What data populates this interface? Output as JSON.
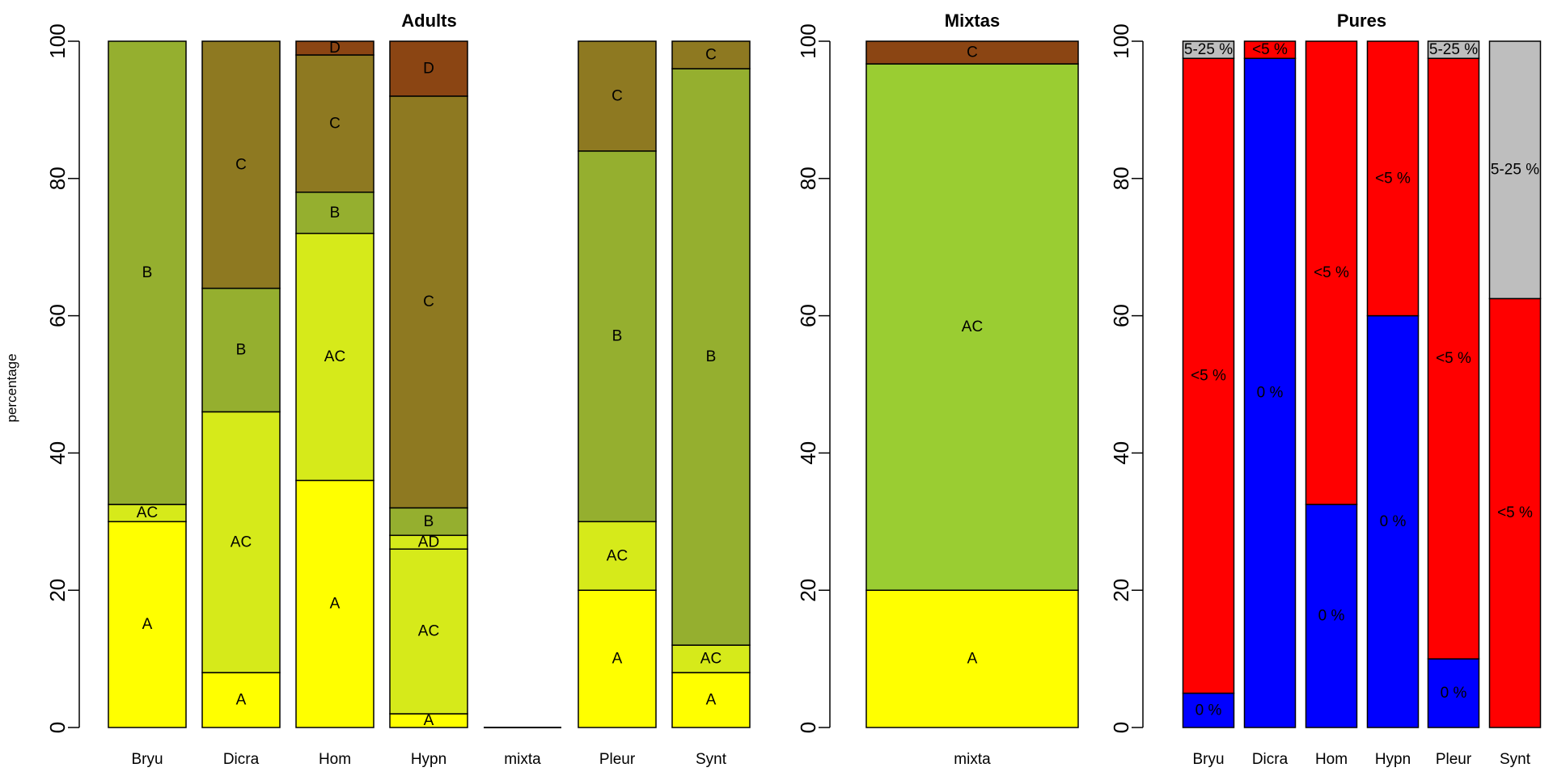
{
  "figure": {
    "ylabel": "percentage",
    "yticks": [
      0,
      20,
      40,
      60,
      80,
      100
    ]
  },
  "chart_data": [
    {
      "type": "bar",
      "stacked": true,
      "title": "Adults",
      "ylim": [
        0,
        100
      ],
      "categories": [
        "Bryu",
        "Dicra",
        "Hom",
        "Hypn",
        "mixta",
        "Pleur",
        "Synt"
      ],
      "bars": [
        {
          "category": "Bryu",
          "segments": [
            {
              "label": "A",
              "value": 30,
              "color": "#FFFF00"
            },
            {
              "label": "AC",
              "value": 2.5,
              "color": "#D6EA1A"
            },
            {
              "label": "B",
              "value": 67.5,
              "color": "#95AF2F"
            }
          ]
        },
        {
          "category": "Dicra",
          "segments": [
            {
              "label": "A",
              "value": 8,
              "color": "#FFFF00"
            },
            {
              "label": "AC",
              "value": 38,
              "color": "#D6EA1A"
            },
            {
              "label": "B",
              "value": 18,
              "color": "#95AF2F"
            },
            {
              "label": "C",
              "value": 36,
              "color": "#8E7921"
            }
          ]
        },
        {
          "category": "Hom",
          "segments": [
            {
              "label": "A",
              "value": 36,
              "color": "#FFFF00"
            },
            {
              "label": "AC",
              "value": 36,
              "color": "#D6EA1A"
            },
            {
              "label": "B",
              "value": 6,
              "color": "#95AF2F"
            },
            {
              "label": "C",
              "value": 20,
              "color": "#8E7921"
            },
            {
              "label": "D",
              "value": 2,
              "color": "#8B4513"
            }
          ]
        },
        {
          "category": "Hypn",
          "segments": [
            {
              "label": "A",
              "value": 2,
              "color": "#FFFF00"
            },
            {
              "label": "AC",
              "value": 24,
              "color": "#D6EA1A"
            },
            {
              "label": "AD",
              "value": 2,
              "color": "#D6EA1A"
            },
            {
              "label": "B",
              "value": 4,
              "color": "#95AF2F"
            },
            {
              "label": "C",
              "value": 60,
              "color": "#8E7921"
            },
            {
              "label": "D",
              "value": 8,
              "color": "#8B4513"
            }
          ]
        },
        {
          "category": "mixta",
          "segments": []
        },
        {
          "category": "Pleur",
          "segments": [
            {
              "label": "A",
              "value": 20,
              "color": "#FFFF00"
            },
            {
              "label": "AC",
              "value": 10,
              "color": "#D6EA1A"
            },
            {
              "label": "B",
              "value": 54,
              "color": "#95AF2F"
            },
            {
              "label": "C",
              "value": 16,
              "color": "#8E7921"
            }
          ]
        },
        {
          "category": "Synt",
          "segments": [
            {
              "label": "A",
              "value": 8,
              "color": "#FFFF00"
            },
            {
              "label": "AC",
              "value": 4,
              "color": "#D6EA1A"
            },
            {
              "label": "B",
              "value": 84,
              "color": "#95AF2F"
            },
            {
              "label": "C",
              "value": 4,
              "color": "#8E7921"
            }
          ]
        }
      ]
    },
    {
      "type": "bar",
      "stacked": true,
      "title": "Mixtas",
      "ylim": [
        0,
        100
      ],
      "categories": [
        "mixta"
      ],
      "bars": [
        {
          "category": "mixta",
          "segments": [
            {
              "label": "A",
              "value": 20,
              "color": "#FFFF00"
            },
            {
              "label": "AC",
              "value": 76.7,
              "color": "#9ACD32"
            },
            {
              "label": "C",
              "value": 3.3,
              "color": "#8B4513"
            }
          ]
        }
      ]
    },
    {
      "type": "bar",
      "stacked": true,
      "title": "Pures",
      "ylim": [
        0,
        100
      ],
      "categories": [
        "Bryu",
        "Dicra",
        "Hom",
        "Hypn",
        "Pleur",
        "Synt"
      ],
      "bars": [
        {
          "category": "Bryu",
          "segments": [
            {
              "label": "0 %",
              "value": 5,
              "color": "#0000FF"
            },
            {
              "label": "<5 %",
              "value": 92.5,
              "color": "#FF0000"
            },
            {
              "label": "5-25 %",
              "value": 2.5,
              "color": "#BEBEBE"
            }
          ]
        },
        {
          "category": "Dicra",
          "segments": [
            {
              "label": "0 %",
              "value": 97.5,
              "color": "#0000FF"
            },
            {
              "label": "<5 %",
              "value": 2.5,
              "color": "#FF0000"
            }
          ]
        },
        {
          "category": "Hom",
          "segments": [
            {
              "label": "0 %",
              "value": 32.5,
              "color": "#0000FF"
            },
            {
              "label": "<5 %",
              "value": 67.5,
              "color": "#FF0000"
            }
          ]
        },
        {
          "category": "Hypn",
          "segments": [
            {
              "label": "0 %",
              "value": 60,
              "color": "#0000FF"
            },
            {
              "label": "<5 %",
              "value": 40,
              "color": "#FF0000"
            }
          ]
        },
        {
          "category": "Pleur",
          "segments": [
            {
              "label": "0 %",
              "value": 10,
              "color": "#0000FF"
            },
            {
              "label": "<5 %",
              "value": 87.5,
              "color": "#FF0000"
            },
            {
              "label": "5-25 %",
              "value": 2.5,
              "color": "#BEBEBE"
            }
          ]
        },
        {
          "category": "Synt",
          "segments": [
            {
              "label": "<5 %",
              "value": 62.5,
              "color": "#FF0000"
            },
            {
              "label": "5-25 %",
              "value": 37.5,
              "color": "#BEBEBE"
            }
          ]
        }
      ]
    }
  ]
}
